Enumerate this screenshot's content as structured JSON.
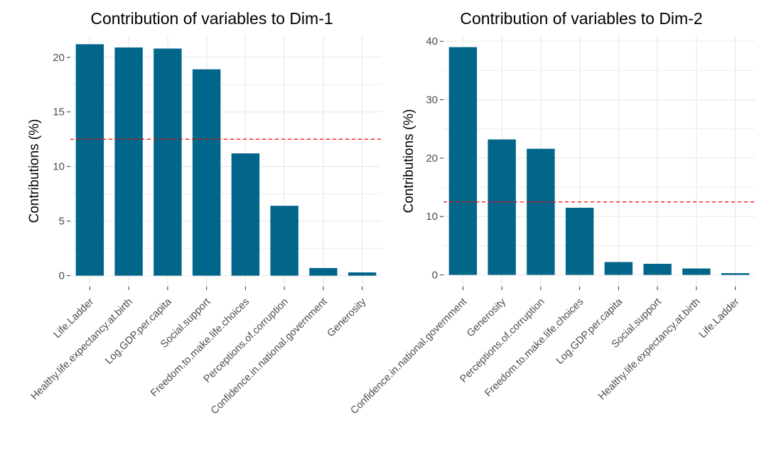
{
  "colors": {
    "bar": "#02658a",
    "reference_line": "#ff0000",
    "grid": "#ebebeb",
    "axis_text": "#4d4d4d"
  },
  "chart_data": [
    {
      "type": "bar",
      "title": "Contribution of variables to Dim-1",
      "xlabel": "",
      "ylabel": "Contributions (%)",
      "ylim": [
        -1,
        22
      ],
      "yticks": [
        0,
        5,
        10,
        15,
        20
      ],
      "reference_line": 12.5,
      "categories": [
        "Life.Ladder",
        "Healthy.life.expectancy.at.birth",
        "Log.GDP.per.capita",
        "Social.support",
        "Freedom.to.make.life.choices",
        "Perceptions.of.corruption",
        "Confidence.in.national.government",
        "Generosity"
      ],
      "values": [
        21.2,
        20.9,
        20.8,
        18.9,
        11.2,
        6.4,
        0.7,
        0.3
      ]
    },
    {
      "type": "bar",
      "title": "Contribution of variables to Dim-2",
      "xlabel": "",
      "ylabel": "Contributions (%)",
      "ylim": [
        -2,
        41
      ],
      "yticks": [
        0,
        10,
        20,
        30,
        40
      ],
      "reference_line": 12.5,
      "categories": [
        "Confidence.in.national.government",
        "Generosity",
        "Perceptions.of.corruption",
        "Freedom.to.make.life.choices",
        "Log.GDP.per.capita",
        "Social.support",
        "Healthy.life.expectancy.at.birth",
        "Life.Ladder"
      ],
      "values": [
        39.0,
        23.2,
        21.6,
        11.5,
        2.2,
        1.9,
        1.1,
        0.3
      ]
    }
  ]
}
